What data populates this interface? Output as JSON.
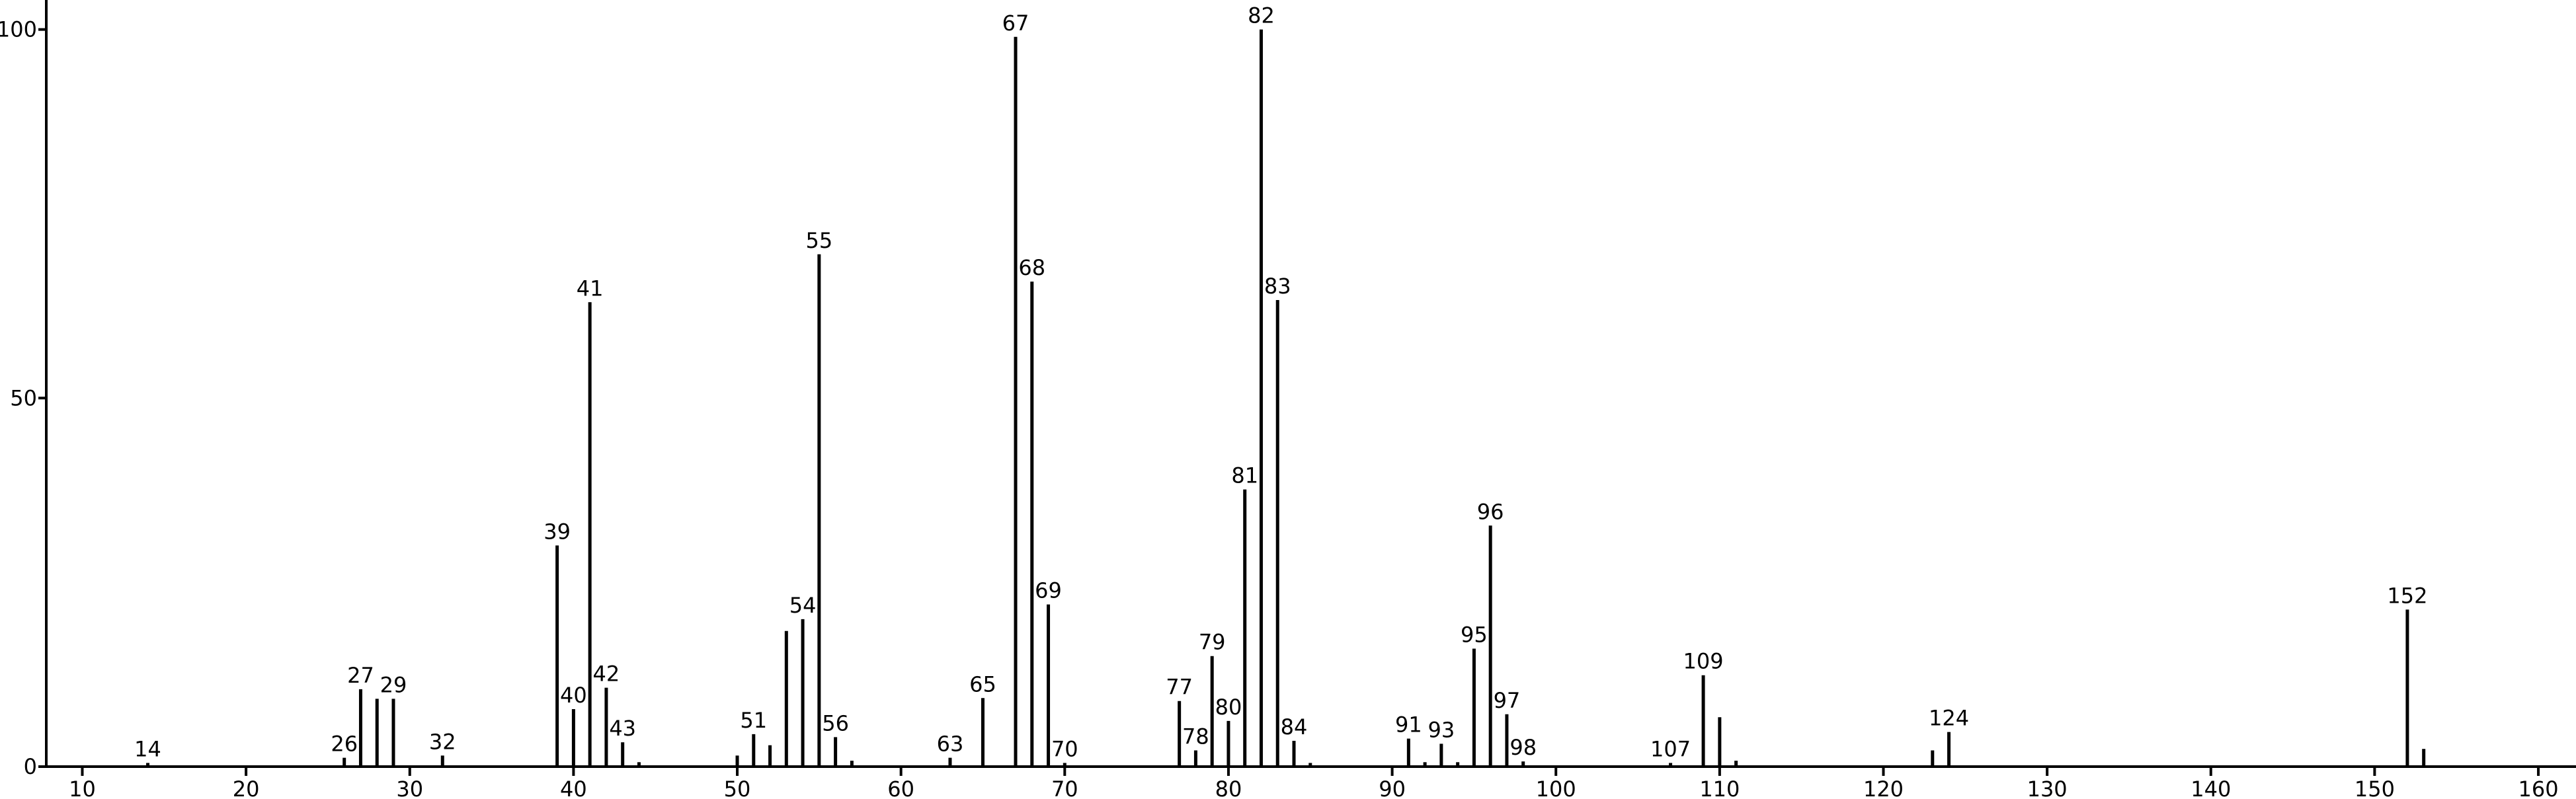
{
  "chart_data": {
    "type": "stem",
    "color": "#000000",
    "x": [
      14,
      26,
      27,
      28,
      29,
      32,
      39,
      40,
      41,
      42,
      43,
      44,
      50,
      51,
      52,
      53,
      54,
      55,
      56,
      57,
      63,
      65,
      67,
      68,
      69,
      70,
      77,
      78,
      79,
      80,
      81,
      82,
      83,
      84,
      85,
      91,
      92,
      93,
      94,
      95,
      96,
      97,
      98,
      107,
      109,
      110,
      111,
      123,
      124,
      152,
      153
    ],
    "values": [
      0.5,
      1.2,
      10.5,
      9.2,
      9.2,
      1.5,
      30,
      7.8,
      63,
      10.7,
      3.3,
      0.6,
      1.5,
      4.4,
      2.9,
      18.4,
      20,
      69.5,
      4,
      0.8,
      1.2,
      9.3,
      99,
      65.8,
      22,
      0.5,
      8.9,
      2.2,
      15,
      6.2,
      37.6,
      100,
      63.3,
      3.5,
      0.5,
      3.8,
      0.6,
      3.1,
      0.6,
      16,
      32.7,
      7.1,
      0.7,
      0.5,
      12.4,
      6.7,
      0.8,
      2.2,
      4.7,
      21.3,
      2.4
    ],
    "labels": [
      14,
      26,
      27,
      null,
      29,
      32,
      39,
      40,
      41,
      42,
      43,
      null,
      null,
      51,
      null,
      null,
      54,
      55,
      56,
      null,
      63,
      65,
      67,
      68,
      69,
      70,
      77,
      78,
      79,
      80,
      81,
      82,
      83,
      84,
      null,
      91,
      null,
      93,
      null,
      95,
      96,
      97,
      98,
      107,
      109,
      null,
      null,
      null,
      124,
      152,
      null
    ],
    "xlim": [
      7.8,
      162.3
    ],
    "ylim": [
      0,
      104
    ],
    "xticks": [
      10,
      20,
      30,
      40,
      50,
      60,
      70,
      80,
      90,
      100,
      110,
      120,
      130,
      140,
      150,
      160
    ],
    "yticks": [
      0,
      50,
      100
    ]
  }
}
